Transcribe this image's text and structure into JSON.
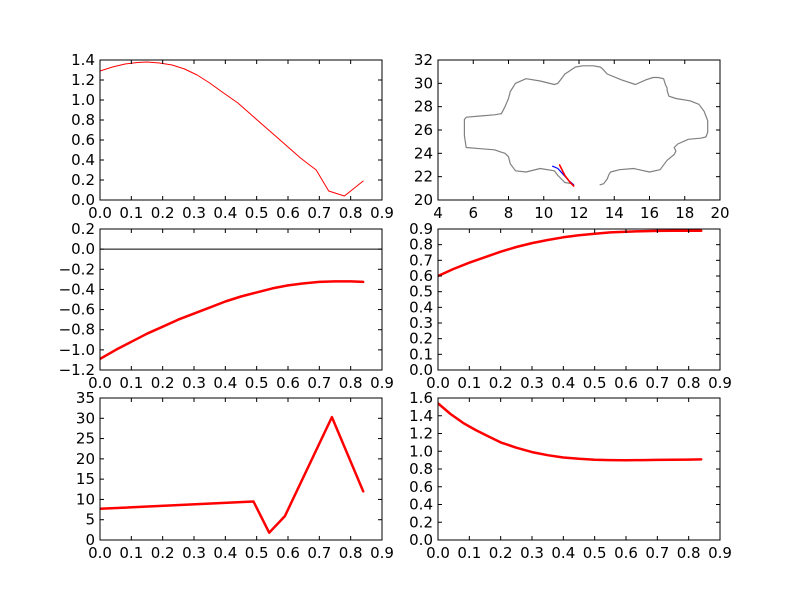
{
  "figure": {
    "background": "#ffffff"
  },
  "chart_data": [
    {
      "type": "line",
      "xlim": [
        0.0,
        0.9
      ],
      "ylim": [
        0.0,
        1.4
      ],
      "xticks": [
        "0.0",
        "0.1",
        "0.2",
        "0.3",
        "0.4",
        "0.5",
        "0.6",
        "0.7",
        "0.8",
        "0.9"
      ],
      "yticks": [
        "0.0",
        "0.2",
        "0.4",
        "0.6",
        "0.8",
        "1.0",
        "1.2",
        "1.4"
      ],
      "title": "",
      "xlabel": "",
      "ylabel": "",
      "grid": false,
      "series": [
        {
          "color": "#ff0000",
          "width": 1,
          "x": [
            0.0,
            0.04,
            0.08,
            0.12,
            0.15,
            0.19,
            0.23,
            0.27,
            0.31,
            0.35,
            0.39,
            0.44,
            0.48,
            0.52,
            0.56,
            0.6,
            0.64,
            0.69,
            0.73,
            0.78,
            0.84
          ],
          "y": [
            1.29,
            1.33,
            1.36,
            1.375,
            1.38,
            1.37,
            1.35,
            1.31,
            1.25,
            1.17,
            1.08,
            0.97,
            0.86,
            0.75,
            0.64,
            0.53,
            0.42,
            0.3,
            0.09,
            0.04,
            0.19
          ]
        }
      ]
    },
    {
      "type": "line",
      "xlim": [
        4,
        20
      ],
      "ylim": [
        20,
        32
      ],
      "xticks": [
        "4",
        "6",
        "8",
        "10",
        "12",
        "14",
        "16",
        "18",
        "20"
      ],
      "yticks": [
        "20",
        "22",
        "24",
        "26",
        "28",
        "30",
        "32"
      ],
      "title": "",
      "xlabel": "",
      "ylabel": "",
      "grid": false,
      "series": [
        {
          "color": "#808080",
          "width": 1.2,
          "x": [
            11.6,
            11.2,
            10.8,
            10.6,
            9.8,
            9.0,
            8.4,
            8.1,
            8.0,
            7.8,
            7.6,
            7.2,
            6.4,
            5.6,
            5.5,
            5.5,
            5.5,
            5.6,
            6.4,
            7.2,
            7.6,
            7.8,
            8.0,
            8.1,
            8.4,
            9.0,
            9.8,
            10.6,
            10.8,
            11.0,
            11.2,
            11.4,
            11.6,
            11.8,
            12.2,
            12.8,
            13.2,
            13.3,
            13.6,
            14.4,
            15.2,
            15.8,
            16.2,
            16.5,
            16.8,
            16.9,
            17.0,
            17.0,
            17.1,
            17.5,
            18.3,
            18.8,
            19.1,
            19.2,
            19.3,
            19.3,
            19.2,
            18.9,
            18.2,
            17.6,
            17.4,
            17.5,
            17.4,
            17.0,
            16.6,
            16.0,
            15.1,
            14.3,
            13.8,
            13.7,
            13.6,
            13.4,
            13.2
          ],
          "y": [
            21.4,
            21.5,
            22.1,
            22.5,
            22.7,
            22.4,
            22.5,
            23.1,
            23.7,
            24.0,
            24.1,
            24.3,
            24.4,
            24.5,
            25.5,
            26.5,
            26.9,
            27.1,
            27.2,
            27.3,
            27.4,
            28.0,
            28.7,
            29.3,
            30.0,
            30.4,
            30.2,
            29.9,
            30.0,
            30.4,
            30.8,
            31.0,
            31.2,
            31.4,
            31.5,
            31.5,
            31.4,
            31.3,
            30.8,
            30.3,
            29.9,
            30.3,
            30.5,
            30.5,
            30.4,
            29.9,
            29.6,
            29.4,
            28.9,
            28.7,
            28.5,
            28.2,
            27.6,
            27.2,
            26.8,
            25.8,
            25.4,
            25.3,
            25.2,
            24.8,
            24.5,
            24.2,
            23.9,
            23.4,
            22.6,
            22.4,
            22.7,
            22.6,
            22.4,
            22.2,
            21.8,
            21.4,
            21.3
          ]
        },
        {
          "color": "#0000ff",
          "width": 1.2,
          "x": [
            10.5,
            10.8,
            11.4,
            11.7
          ],
          "y": [
            22.9,
            22.7,
            21.7,
            21.3
          ]
        },
        {
          "color": "#ff0000",
          "width": 1.6,
          "x": [
            10.9,
            11.2,
            11.5,
            11.7
          ],
          "y": [
            23.0,
            22.1,
            21.5,
            21.2
          ]
        }
      ]
    },
    {
      "type": "line",
      "xlim": [
        0.0,
        0.9
      ],
      "ylim": [
        -1.2,
        0.2
      ],
      "xticks": [
        "0.0",
        "0.1",
        "0.2",
        "0.3",
        "0.4",
        "0.5",
        "0.6",
        "0.7",
        "0.8",
        "0.9"
      ],
      "yticks": [
        "−1.2",
        "−1.0",
        "−0.8",
        "−0.6",
        "−0.4",
        "−0.2",
        "0.0",
        "0.2"
      ],
      "title": "",
      "xlabel": "",
      "ylabel": "",
      "grid": false,
      "series": [
        {
          "color": "#000000",
          "width": 1,
          "x": [
            0.0,
            0.9
          ],
          "y": [
            0.0,
            0.0
          ]
        },
        {
          "color": "#ff0000",
          "width": 2.5,
          "x": [
            0.0,
            0.05,
            0.1,
            0.15,
            0.2,
            0.25,
            0.3,
            0.35,
            0.4,
            0.45,
            0.5,
            0.55,
            0.6,
            0.65,
            0.7,
            0.75,
            0.8,
            0.84
          ],
          "y": [
            -1.09,
            -1.0,
            -0.92,
            -0.84,
            -0.77,
            -0.7,
            -0.64,
            -0.58,
            -0.52,
            -0.47,
            -0.43,
            -0.39,
            -0.36,
            -0.34,
            -0.325,
            -0.32,
            -0.32,
            -0.325
          ]
        }
      ]
    },
    {
      "type": "line",
      "xlim": [
        0.0,
        0.9
      ],
      "ylim": [
        0.0,
        0.9
      ],
      "xticks": [
        "0.0",
        "0.1",
        "0.2",
        "0.3",
        "0.4",
        "0.5",
        "0.6",
        "0.7",
        "0.8",
        "0.9"
      ],
      "yticks": [
        "0.0",
        "0.1",
        "0.2",
        "0.3",
        "0.4",
        "0.5",
        "0.6",
        "0.7",
        "0.8",
        "0.9"
      ],
      "title": "",
      "xlabel": "",
      "ylabel": "",
      "grid": false,
      "series": [
        {
          "color": "#ff0000",
          "width": 2.5,
          "x": [
            0.0,
            0.05,
            0.1,
            0.15,
            0.2,
            0.25,
            0.3,
            0.35,
            0.4,
            0.45,
            0.5,
            0.55,
            0.6,
            0.65,
            0.7,
            0.75,
            0.8,
            0.84
          ],
          "y": [
            0.6,
            0.645,
            0.685,
            0.72,
            0.755,
            0.785,
            0.81,
            0.83,
            0.847,
            0.86,
            0.87,
            0.878,
            0.883,
            0.886,
            0.888,
            0.889,
            0.889,
            0.889
          ]
        }
      ]
    },
    {
      "type": "line",
      "xlim": [
        0.0,
        0.9
      ],
      "ylim": [
        0,
        35
      ],
      "xticks": [
        "0.0",
        "0.1",
        "0.2",
        "0.3",
        "0.4",
        "0.5",
        "0.6",
        "0.7",
        "0.8",
        "0.9"
      ],
      "yticks": [
        "0",
        "5",
        "10",
        "15",
        "20",
        "25",
        "30",
        "35"
      ],
      "title": "",
      "xlabel": "",
      "ylabel": "",
      "grid": false,
      "series": [
        {
          "color": "#ff0000",
          "width": 2.5,
          "x": [
            0.0,
            0.49,
            0.54,
            0.59,
            0.74,
            0.84
          ],
          "y": [
            7.7,
            9.5,
            1.8,
            5.9,
            30.3,
            12.0
          ]
        }
      ]
    },
    {
      "type": "line",
      "xlim": [
        0.0,
        0.9
      ],
      "ylim": [
        0.0,
        1.6
      ],
      "xticks": [
        "0.0",
        "0.1",
        "0.2",
        "0.3",
        "0.4",
        "0.5",
        "0.6",
        "0.7",
        "0.8",
        "0.9"
      ],
      "yticks": [
        "0.0",
        "0.2",
        "0.4",
        "0.6",
        "0.8",
        "1.0",
        "1.2",
        "1.4",
        "1.6"
      ],
      "title": "",
      "xlabel": "",
      "ylabel": "",
      "grid": false,
      "series": [
        {
          "color": "#ff0000",
          "width": 2.5,
          "x": [
            0.0,
            0.04,
            0.08,
            0.12,
            0.16,
            0.2,
            0.25,
            0.3,
            0.35,
            0.4,
            0.45,
            0.5,
            0.55,
            0.6,
            0.65,
            0.7,
            0.75,
            0.8,
            0.84
          ],
          "y": [
            1.54,
            1.42,
            1.32,
            1.24,
            1.17,
            1.1,
            1.04,
            0.99,
            0.955,
            0.93,
            0.915,
            0.905,
            0.9,
            0.898,
            0.9,
            0.902,
            0.904,
            0.906,
            0.908
          ]
        }
      ]
    }
  ]
}
